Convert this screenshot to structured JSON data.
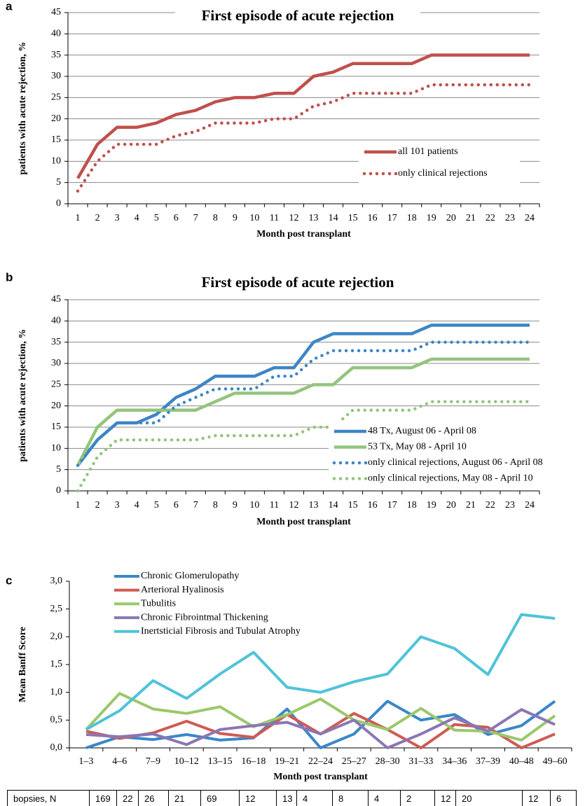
{
  "chart_data": [
    {
      "type": "line",
      "panel": "a",
      "title": "First episode of acute rejection",
      "xlabel": "Month post transplant",
      "ylabel": "patients with acute rejection, %",
      "categories": [
        1,
        2,
        3,
        4,
        5,
        6,
        7,
        8,
        9,
        10,
        11,
        12,
        13,
        14,
        15,
        16,
        17,
        18,
        19,
        20,
        21,
        22,
        23,
        24
      ],
      "ylim": [
        0,
        45
      ],
      "yticks": [
        0,
        5,
        10,
        15,
        20,
        25,
        30,
        35,
        40,
        45
      ],
      "grid": true,
      "legend": "lower right",
      "series": [
        {
          "name": "all 101 patients",
          "color": "#c0504d",
          "line_style": "solid",
          "values": [
            6,
            14,
            18,
            18,
            19,
            21,
            22,
            24,
            25,
            25,
            26,
            26,
            30,
            31,
            33,
            33,
            33,
            33,
            35,
            35,
            35,
            35,
            35,
            35
          ]
        },
        {
          "name": "only clinical rejections",
          "color": "#c0504d",
          "line_style": "dotted",
          "values": [
            3,
            10,
            14,
            14,
            14,
            16,
            17,
            19,
            19,
            19,
            20,
            20,
            23,
            24,
            26,
            26,
            26,
            26,
            28,
            28,
            28,
            28,
            28,
            28
          ]
        }
      ]
    },
    {
      "type": "line",
      "panel": "b",
      "title": "First episode of acute rejection",
      "xlabel": "Month post transplant",
      "ylabel": "patients with acute rejection, %",
      "categories": [
        1,
        2,
        3,
        4,
        5,
        6,
        7,
        8,
        9,
        10,
        11,
        12,
        13,
        14,
        15,
        16,
        17,
        18,
        19,
        20,
        21,
        22,
        23,
        24
      ],
      "ylim": [
        0,
        45
      ],
      "yticks": [
        0,
        5,
        10,
        15,
        20,
        25,
        30,
        35,
        40,
        45
      ],
      "grid": true,
      "legend": "lower right",
      "series": [
        {
          "name": "48 Tx, August 06 - April 08",
          "color": "#3d85c6",
          "line_style": "solid",
          "values": [
            6,
            12,
            16,
            16,
            18,
            22,
            24,
            27,
            27,
            27,
            29,
            29,
            35,
            37,
            37,
            37,
            37,
            37,
            39,
            39,
            39,
            39,
            39,
            39
          ]
        },
        {
          "name": "53 Tx, May 08 - April 10",
          "color": "#93c47d",
          "line_style": "solid",
          "values": [
            6,
            15,
            19,
            19,
            19,
            19,
            19,
            21,
            23,
            23,
            23,
            23,
            25,
            25,
            29,
            29,
            29,
            29,
            31,
            31,
            31,
            31,
            31,
            31
          ]
        },
        {
          "name": "only clinical rejections, August 06 - April 08",
          "color": "#3d85c6",
          "line_style": "dotted",
          "values": [
            6,
            12,
            16,
            16,
            16,
            20,
            22,
            24,
            24,
            24,
            27,
            27,
            31,
            33,
            33,
            33,
            33,
            33,
            35,
            35,
            35,
            35,
            35,
            35
          ]
        },
        {
          "name": "only clinical rejections, May 08 - April 10",
          "color": "#93c47d",
          "line_style": "dotted",
          "values": [
            0,
            8,
            12,
            12,
            12,
            12,
            12,
            13,
            13,
            13,
            13,
            13,
            15,
            15,
            19,
            19,
            19,
            19,
            21,
            21,
            21,
            21,
            21,
            21
          ]
        }
      ]
    },
    {
      "type": "line",
      "panel": "c",
      "xlabel": "Month post transplant",
      "ylabel": "Mean Banff Score",
      "categories": [
        "1–3",
        "4–6",
        "7–9",
        "10–12",
        "13–15",
        "16–18",
        "19–21",
        "22–24",
        "25–27",
        "28–30",
        "31–33",
        "34–36",
        "37–39",
        "40–48",
        "49–60"
      ],
      "ylim": [
        0,
        3
      ],
      "yticks": [
        {
          "value": 0,
          "label": "0,0"
        },
        {
          "value": 0.5,
          "label": "0,5"
        },
        {
          "value": 1,
          "label": "1,0"
        },
        {
          "value": 1.5,
          "label": "1,5"
        },
        {
          "value": 2,
          "label": "2,0"
        },
        {
          "value": 2.5,
          "label": "2,5"
        },
        {
          "value": 3,
          "label": "3,0"
        }
      ],
      "grid": false,
      "legend": "upper left",
      "series": [
        {
          "name": "Chronic Glomerulopathy",
          "color": "#3a87c8",
          "line_style": "solid",
          "values": [
            0.0,
            0.2,
            0.15,
            0.24,
            0.14,
            0.18,
            0.7,
            0.0,
            0.25,
            0.84,
            0.5,
            0.6,
            0.24,
            0.4,
            0.84
          ]
        },
        {
          "name": "Arterioral Hyalinosis",
          "color": "#cf5b55",
          "line_style": "solid",
          "values": [
            0.3,
            0.17,
            0.27,
            0.48,
            0.26,
            0.19,
            0.6,
            0.25,
            0.62,
            0.33,
            0.0,
            0.42,
            0.37,
            0.0,
            0.25
          ]
        },
        {
          "name": "Tubulitis",
          "color": "#9bc86b",
          "line_style": "solid",
          "values": [
            0.33,
            0.98,
            0.7,
            0.62,
            0.74,
            0.38,
            0.6,
            0.88,
            0.5,
            0.33,
            0.71,
            0.32,
            0.3,
            0.14,
            0.58
          ]
        },
        {
          "name": "Chronic Fibrointmal Thickening",
          "color": "#8b76b4",
          "line_style": "solid",
          "values": [
            0.24,
            0.2,
            0.25,
            0.06,
            0.33,
            0.4,
            0.46,
            0.25,
            0.5,
            0.0,
            0.25,
            0.54,
            0.3,
            0.69,
            0.42
          ]
        },
        {
          "name": "Inertsticial Fibrosis and Tubulat Atrophy",
          "color": "#4fc3d8",
          "line_style": "solid",
          "values": [
            0.33,
            0.67,
            1.21,
            0.89,
            1.33,
            1.72,
            1.09,
            1.0,
            1.19,
            1.33,
            2.0,
            1.79,
            1.32,
            2.4,
            2.33
          ]
        }
      ]
    }
  ],
  "table": {
    "header": "bopsies, N",
    "cells": [
      169,
      22,
      26,
      21,
      69,
      12,
      13,
      4,
      8,
      4,
      2,
      12,
      20,
      12,
      6
    ]
  }
}
